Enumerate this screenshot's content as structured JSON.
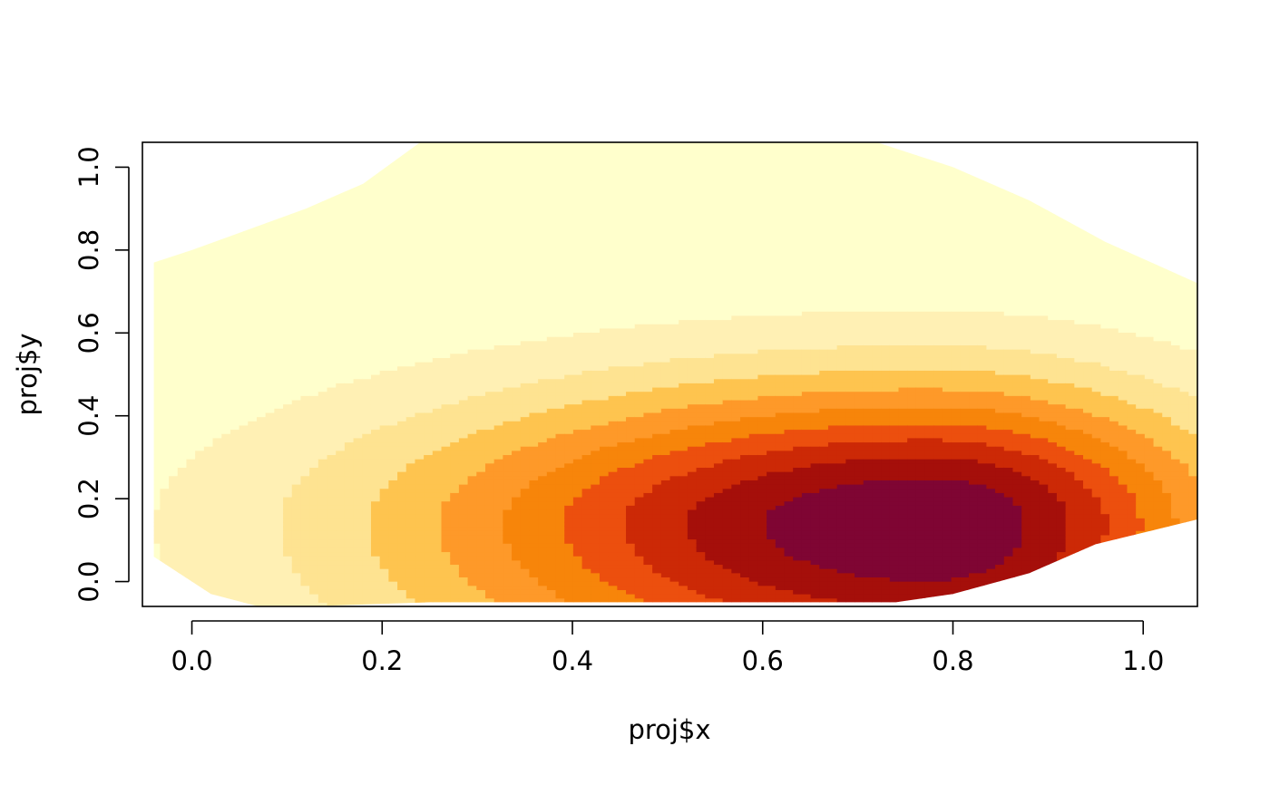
{
  "chart_data": {
    "type": "heatmap",
    "xlabel": "proj$x",
    "ylabel": "proj$y",
    "xlim": [
      -0.052,
      1.057
    ],
    "ylim": [
      -0.06,
      1.06
    ],
    "x_ticks": [
      0.0,
      0.2,
      0.4,
      0.6,
      0.8,
      1.0
    ],
    "x_tick_labels": [
      "0.0",
      "0.2",
      "0.4",
      "0.6",
      "0.8",
      "1.0"
    ],
    "y_ticks": [
      0.0,
      0.2,
      0.4,
      0.6,
      0.8,
      1.0
    ],
    "y_tick_labels": [
      "0.0",
      "0.2",
      "0.4",
      "0.6",
      "0.8",
      "1.0"
    ],
    "grid": false,
    "colors": [
      "#FFFFCC",
      "#FFF0B4",
      "#FEE391",
      "#FEC44F",
      "#FE9929",
      "#F7850A",
      "#EC4F0E",
      "#CC2906",
      "#A50F0A",
      "#7F0533"
    ],
    "levels": [
      0.0,
      0.1,
      0.2,
      0.3,
      0.4,
      0.5,
      0.6,
      0.7,
      0.8,
      0.9,
      1.0
    ],
    "density_peak": {
      "x": 0.775,
      "y": 0.14
    },
    "region_boundary": [
      [
        -0.04,
        0.06
      ],
      [
        -0.04,
        0.77
      ],
      [
        0.0,
        0.8
      ],
      [
        0.06,
        0.85
      ],
      [
        0.12,
        0.9
      ],
      [
        0.18,
        0.96
      ],
      [
        0.24,
        1.06
      ],
      [
        0.72,
        1.06
      ],
      [
        0.8,
        1.0
      ],
      [
        0.88,
        0.92
      ],
      [
        0.96,
        0.82
      ],
      [
        1.057,
        0.72
      ],
      [
        1.057,
        0.15
      ],
      [
        0.95,
        0.09
      ],
      [
        0.88,
        0.02
      ],
      [
        0.8,
        -0.03
      ],
      [
        0.74,
        -0.05
      ],
      [
        0.6,
        -0.05
      ],
      [
        0.4,
        -0.05
      ],
      [
        0.25,
        -0.05
      ],
      [
        0.12,
        -0.06
      ],
      [
        0.07,
        -0.06
      ],
      [
        0.02,
        -0.03
      ]
    ]
  }
}
